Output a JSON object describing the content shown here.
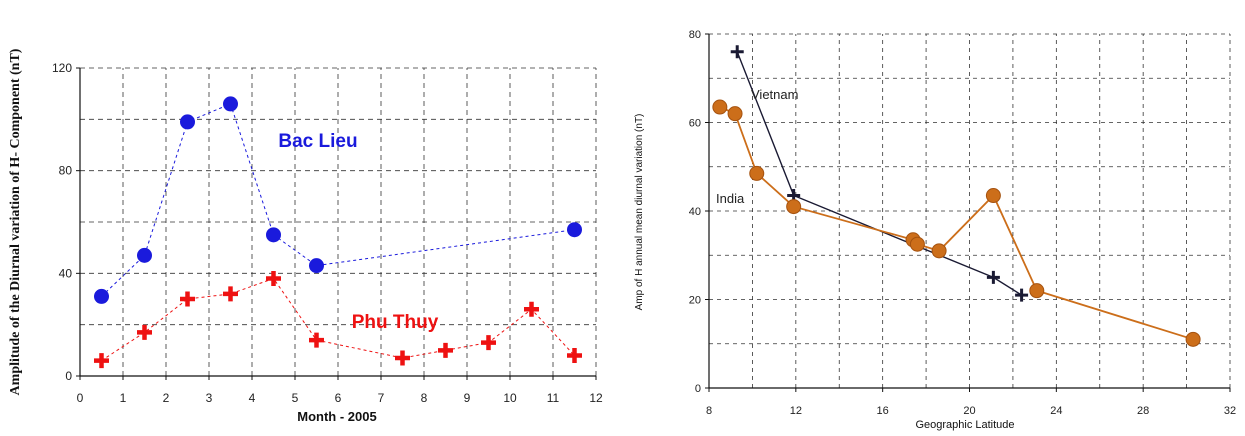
{
  "chart_data": [
    {
      "type": "scatter",
      "title": "",
      "xlabel": "Month - 2005",
      "ylabel": "Amplitude of the Diurnal variation of H- Component (nT)",
      "xlim": [
        0,
        12
      ],
      "ylim": [
        0,
        120
      ],
      "xticks": [
        "0",
        "1",
        "2",
        "3",
        "4",
        "5",
        "6",
        "7",
        "8",
        "9",
        "10",
        "11",
        "12"
      ],
      "yticks": [
        "0",
        "40",
        "80",
        "120"
      ],
      "grid": true,
      "series": [
        {
          "name": "Bac Lieu",
          "color": "#1a1adc",
          "marker": "circle",
          "x": [
            0.5,
            1.5,
            2.5,
            3.5,
            4.5,
            5.5,
            11.5
          ],
          "y": [
            31,
            47,
            99,
            106,
            55,
            43,
            57
          ]
        },
        {
          "name": "Phu Thuy",
          "color": "#ee1111",
          "marker": "plus",
          "x": [
            0.5,
            1.5,
            2.5,
            3.5,
            4.5,
            5.5,
            7.5,
            8.5,
            9.5,
            10.5,
            11.5
          ],
          "y": [
            6,
            17,
            30,
            32,
            38,
            14,
            7,
            10,
            13,
            26,
            8
          ]
        }
      ]
    },
    {
      "type": "line",
      "title": "",
      "xlabel": "Geographic Latitude",
      "ylabel": "Amp of H annual mean diurnal variation (nT)",
      "xlim": [
        8,
        32
      ],
      "ylim": [
        0,
        80
      ],
      "xticks": [
        "8",
        "12",
        "16",
        "20",
        "24",
        "28",
        "32"
      ],
      "yticks": [
        "0",
        "20",
        "40",
        "60",
        "80"
      ],
      "grid": true,
      "series": [
        {
          "name": "Vietnam",
          "color": "#1a1a33",
          "marker": "plus",
          "x": [
            9.3,
            11.9,
            21.1,
            22.4
          ],
          "y": [
            76,
            43.5,
            25,
            21
          ]
        },
        {
          "name": "India",
          "color": "#cc6e1a",
          "marker": "circle",
          "x": [
            8.5,
            9.2,
            10.2,
            11.9,
            17.4,
            17.6,
            18.6,
            21.1,
            23.1,
            30.3
          ],
          "y": [
            63.5,
            62,
            48.5,
            41,
            33.5,
            32.5,
            31,
            43.5,
            22,
            11
          ]
        }
      ]
    }
  ]
}
